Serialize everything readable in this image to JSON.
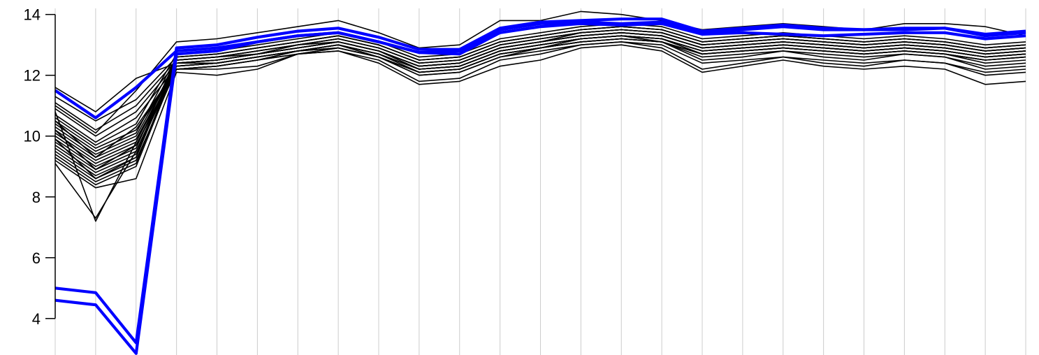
{
  "chart_data": {
    "type": "line",
    "title": "",
    "xlabel": "",
    "ylabel": "",
    "x": [
      1,
      2,
      3,
      4,
      5,
      6,
      7,
      8,
      9,
      10,
      11,
      12,
      13,
      14,
      15,
      16,
      17,
      18,
      19,
      20,
      21,
      22,
      23,
      24,
      25
    ],
    "xlim": [
      0.5,
      25.5
    ],
    "ylim": [
      2.8,
      14.2
    ],
    "yticks": [
      4,
      6,
      8,
      10,
      12,
      14
    ],
    "grid_x": true,
    "colors": {
      "background_series": "#000000",
      "highlight_series": "#0000ff",
      "grid": "#cccccc"
    },
    "highlight_series": [
      {
        "values": [
          11.5,
          10.6,
          11.6,
          12.8,
          12.9,
          13.1,
          13.3,
          13.4,
          13.1,
          12.75,
          12.8,
          13.5,
          13.7,
          13.75,
          13.7,
          13.75,
          13.4,
          13.5,
          13.6,
          13.5,
          13.5,
          13.5,
          13.55,
          13.3,
          13.4
        ]
      },
      {
        "values": [
          5.0,
          4.85,
          3.2,
          12.9,
          13.0,
          13.25,
          13.45,
          13.55,
          13.25,
          12.85,
          12.85,
          13.55,
          13.75,
          13.8,
          13.85,
          13.85,
          13.45,
          13.55,
          13.65,
          13.55,
          13.5,
          13.55,
          13.55,
          13.35,
          13.45
        ]
      },
      {
        "values": [
          4.6,
          4.45,
          2.85,
          12.7,
          12.8,
          13.1,
          13.3,
          13.4,
          13.1,
          12.75,
          12.7,
          13.4,
          13.6,
          13.7,
          13.65,
          13.7,
          13.35,
          13.4,
          13.35,
          13.3,
          13.35,
          13.4,
          13.4,
          13.2,
          13.3
        ]
      }
    ],
    "background_series": [
      {
        "values": [
          11.6,
          10.8,
          11.9,
          12.4,
          12.5,
          12.7,
          13.0,
          13.1,
          12.8,
          12.3,
          12.4,
          12.9,
          13.1,
          13.4,
          13.5,
          13.4,
          13.0,
          13.1,
          13.2,
          13.1,
          13.0,
          13.1,
          13.0,
          12.8,
          12.9
        ]
      },
      {
        "values": [
          11.3,
          10.5,
          11.2,
          12.6,
          12.7,
          12.9,
          13.1,
          13.3,
          13.0,
          12.5,
          12.6,
          13.1,
          13.3,
          13.5,
          13.6,
          13.5,
          13.1,
          13.2,
          13.3,
          13.2,
          13.1,
          13.2,
          13.1,
          12.9,
          13.0
        ]
      },
      {
        "values": [
          11.1,
          10.2,
          11.0,
          12.5,
          12.6,
          12.8,
          13.0,
          13.2,
          12.9,
          12.4,
          12.5,
          13.0,
          13.2,
          13.4,
          13.5,
          13.4,
          13.0,
          13.1,
          13.2,
          13.1,
          13.0,
          13.1,
          13.0,
          12.8,
          12.9
        ]
      },
      {
        "values": [
          10.9,
          10.0,
          10.8,
          12.4,
          12.5,
          12.7,
          12.9,
          13.1,
          12.8,
          12.3,
          12.4,
          12.9,
          13.1,
          13.3,
          13.4,
          13.3,
          12.9,
          13.0,
          13.1,
          13.0,
          12.9,
          13.0,
          12.9,
          12.7,
          12.8
        ]
      },
      {
        "values": [
          10.7,
          9.8,
          10.6,
          12.3,
          12.4,
          12.6,
          12.8,
          13.0,
          12.7,
          12.2,
          12.3,
          12.8,
          13.0,
          13.2,
          13.3,
          13.2,
          12.8,
          12.9,
          13.0,
          12.9,
          12.8,
          12.9,
          12.8,
          12.6,
          12.7
        ]
      },
      {
        "values": [
          10.6,
          9.7,
          10.4,
          12.7,
          12.8,
          13.0,
          13.2,
          13.4,
          13.1,
          12.6,
          12.7,
          13.2,
          13.4,
          13.6,
          13.7,
          13.6,
          13.2,
          13.3,
          13.4,
          13.3,
          13.2,
          13.3,
          13.2,
          13.0,
          13.1
        ]
      },
      {
        "values": [
          10.5,
          9.6,
          10.2,
          12.2,
          12.3,
          12.5,
          12.8,
          12.9,
          12.6,
          12.1,
          12.2,
          12.7,
          12.9,
          13.1,
          13.2,
          13.1,
          12.7,
          12.8,
          12.9,
          12.8,
          12.7,
          12.8,
          12.7,
          12.5,
          12.6
        ]
      },
      {
        "values": [
          10.4,
          9.5,
          10.1,
          12.6,
          12.7,
          12.9,
          13.1,
          13.3,
          13.0,
          12.5,
          12.6,
          13.1,
          13.3,
          13.5,
          13.6,
          13.5,
          13.1,
          13.2,
          13.3,
          13.2,
          13.1,
          13.2,
          13.1,
          12.9,
          13.0
        ]
      },
      {
        "values": [
          10.3,
          9.4,
          10.0,
          12.4,
          12.5,
          12.7,
          12.9,
          13.1,
          12.8,
          12.3,
          12.4,
          12.9,
          13.1,
          13.3,
          13.4,
          13.3,
          12.9,
          13.0,
          13.1,
          13.0,
          12.9,
          13.0,
          12.9,
          12.7,
          12.8
        ]
      },
      {
        "values": [
          10.2,
          9.3,
          9.9,
          12.3,
          12.4,
          12.6,
          12.8,
          13.0,
          12.7,
          12.2,
          12.3,
          12.8,
          13.0,
          13.2,
          13.3,
          13.2,
          12.8,
          12.9,
          13.0,
          12.9,
          12.8,
          12.9,
          12.8,
          12.6,
          12.7
        ]
      },
      {
        "values": [
          10.1,
          9.2,
          9.8,
          12.5,
          12.6,
          12.8,
          13.0,
          13.2,
          12.9,
          12.4,
          12.5,
          13.0,
          13.2,
          13.4,
          13.5,
          13.4,
          13.0,
          13.1,
          13.2,
          13.1,
          13.0,
          13.1,
          13.0,
          12.8,
          12.9
        ]
      },
      {
        "values": [
          10.0,
          9.1,
          9.7,
          12.2,
          12.3,
          12.5,
          12.7,
          12.9,
          12.6,
          12.1,
          12.2,
          12.7,
          12.9,
          13.1,
          13.2,
          13.1,
          12.7,
          12.8,
          12.9,
          12.8,
          12.7,
          12.8,
          12.7,
          12.5,
          12.6
        ]
      },
      {
        "values": [
          9.9,
          9.0,
          9.6,
          12.6,
          12.7,
          12.9,
          13.1,
          13.3,
          13.0,
          12.5,
          12.6,
          13.1,
          13.3,
          13.5,
          13.6,
          13.5,
          13.1,
          13.2,
          13.3,
          13.2,
          13.1,
          13.2,
          13.1,
          12.9,
          13.0
        ]
      },
      {
        "values": [
          9.8,
          8.9,
          9.5,
          12.4,
          12.5,
          12.7,
          12.9,
          13.1,
          12.8,
          12.3,
          12.4,
          12.9,
          13.1,
          13.3,
          13.4,
          13.3,
          12.9,
          13.0,
          13.1,
          13.0,
          12.9,
          13.0,
          12.9,
          12.7,
          12.8
        ]
      },
      {
        "values": [
          9.7,
          8.8,
          9.4,
          12.3,
          12.4,
          12.6,
          12.8,
          13.0,
          12.7,
          12.2,
          12.3,
          12.8,
          13.0,
          13.2,
          13.3,
          13.2,
          12.8,
          12.9,
          13.0,
          12.9,
          12.8,
          12.9,
          12.8,
          12.6,
          12.7
        ]
      },
      {
        "values": [
          9.6,
          8.7,
          9.3,
          12.5,
          12.6,
          12.8,
          13.0,
          13.2,
          12.9,
          12.4,
          12.5,
          13.0,
          13.2,
          13.4,
          13.5,
          13.4,
          13.0,
          13.1,
          13.2,
          13.1,
          13.0,
          13.1,
          13.0,
          12.8,
          12.9
        ]
      },
      {
        "values": [
          9.5,
          8.6,
          9.2,
          12.2,
          12.3,
          12.5,
          12.7,
          12.9,
          12.6,
          12.1,
          12.2,
          12.7,
          12.9,
          13.1,
          13.2,
          13.1,
          12.7,
          12.8,
          12.9,
          12.8,
          12.7,
          12.8,
          12.7,
          12.5,
          12.6
        ]
      },
      {
        "values": [
          9.4,
          8.5,
          9.1,
          12.4,
          12.5,
          12.7,
          12.9,
          13.1,
          12.8,
          12.3,
          12.4,
          12.9,
          13.1,
          13.3,
          13.4,
          13.3,
          12.9,
          13.0,
          13.1,
          13.0,
          12.9,
          13.0,
          12.9,
          12.7,
          12.8
        ]
      },
      {
        "values": [
          9.3,
          8.4,
          9.0,
          12.3,
          12.4,
          12.6,
          12.8,
          13.0,
          12.7,
          12.2,
          12.3,
          12.8,
          13.0,
          13.2,
          13.3,
          13.2,
          12.8,
          12.9,
          13.0,
          12.9,
          12.8,
          12.9,
          12.8,
          12.6,
          12.7
        ]
      },
      {
        "values": [
          9.2,
          8.3,
          8.6,
          12.1,
          12.0,
          12.2,
          12.7,
          12.8,
          12.4,
          11.7,
          11.8,
          12.3,
          12.5,
          12.9,
          13.0,
          12.8,
          12.1,
          12.3,
          12.5,
          12.3,
          12.2,
          12.3,
          12.2,
          11.7,
          11.8
        ]
      },
      {
        "values": [
          9.1,
          7.3,
          9.5,
          12.2,
          12.2,
          12.3,
          12.7,
          12.8,
          12.5,
          11.8,
          11.9,
          12.5,
          12.7,
          13.0,
          13.1,
          12.9,
          12.2,
          12.4,
          12.6,
          12.4,
          12.3,
          12.5,
          12.4,
          12.0,
          12.1
        ]
      },
      {
        "values": [
          10.8,
          7.2,
          9.8,
          12.4,
          12.4,
          12.6,
          12.8,
          13.0,
          12.6,
          12.0,
          12.1,
          12.6,
          12.9,
          13.2,
          13.3,
          13.1,
          12.5,
          12.6,
          12.8,
          12.6,
          12.5,
          12.7,
          12.6,
          12.2,
          12.3
        ]
      },
      {
        "values": [
          11.0,
          10.1,
          11.5,
          13.1,
          13.2,
          13.4,
          13.6,
          13.8,
          13.4,
          12.9,
          13.0,
          13.8,
          13.8,
          14.1,
          14.0,
          13.8,
          13.5,
          13.6,
          13.7,
          13.6,
          13.5,
          13.7,
          13.7,
          13.6,
          13.3
        ]
      },
      {
        "values": [
          10.5,
          9.3,
          10.3,
          12.2,
          12.3,
          12.5,
          12.8,
          12.9,
          12.6,
          12.0,
          12.1,
          12.6,
          12.8,
          13.0,
          13.1,
          13.0,
          12.4,
          12.5,
          12.6,
          12.5,
          12.4,
          12.5,
          12.4,
          12.1,
          12.2
        ]
      },
      {
        "values": [
          10.2,
          8.9,
          9.7,
          12.3,
          12.4,
          12.6,
          12.8,
          13.0,
          12.7,
          12.1,
          12.2,
          12.7,
          12.9,
          13.1,
          13.2,
          13.1,
          12.6,
          12.7,
          12.8,
          12.7,
          12.6,
          12.7,
          12.6,
          12.3,
          12.4
        ]
      },
      {
        "values": [
          9.9,
          8.6,
          9.3,
          12.5,
          12.6,
          12.7,
          12.9,
          13.1,
          12.8,
          12.2,
          12.3,
          12.8,
          13.0,
          13.2,
          13.3,
          13.2,
          12.7,
          12.8,
          12.9,
          12.8,
          12.7,
          12.8,
          12.7,
          12.4,
          12.5
        ]
      }
    ]
  }
}
